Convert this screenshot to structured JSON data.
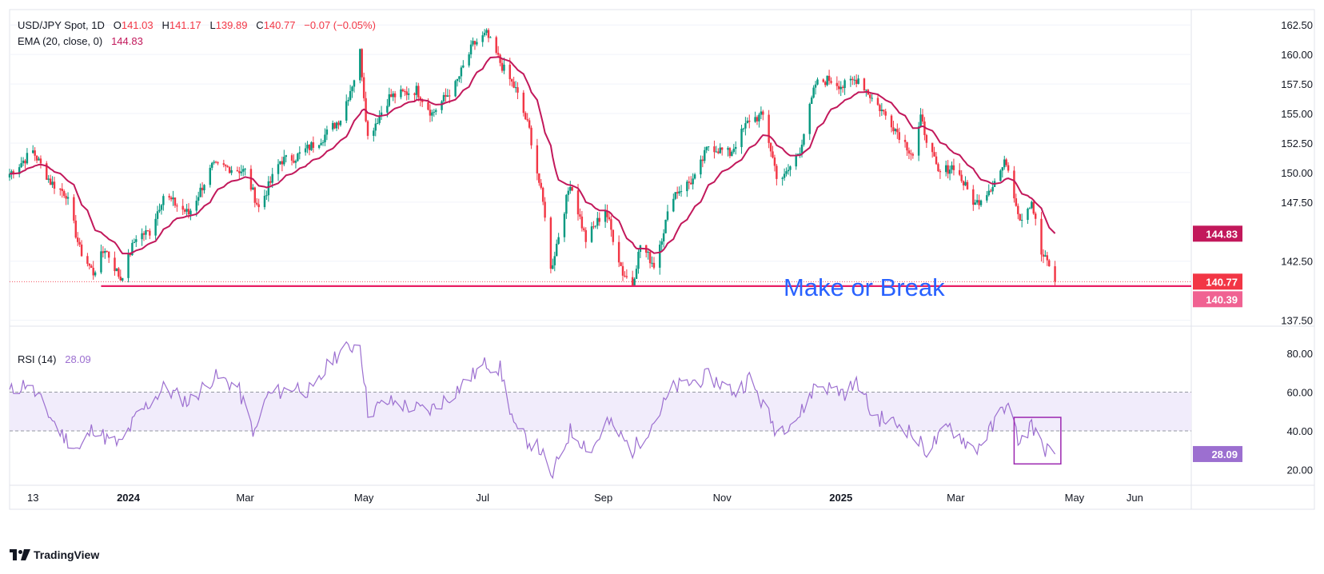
{
  "header": {
    "symbol": "USD/JPY Spot, 1D",
    "o_label": "O",
    "o_value": "141.03",
    "h_label": "H",
    "h_value": "141.17",
    "l_label": "L",
    "l_value": "139.89",
    "c_label": "C",
    "c_value": "140.77",
    "change": "−0.07 (−0.05%)",
    "ema_label": "EMA (20, close, 0)",
    "ema_value": "144.83",
    "rsi_label": "RSI (14)",
    "rsi_value": "28.09"
  },
  "annotation": {
    "text": "Make or Break"
  },
  "branding": {
    "text": "TradingView"
  },
  "colors": {
    "up": "#089981",
    "down": "#f23645",
    "ema": "#c2185b",
    "rsi": "#9c6fd0",
    "rsi_band": "#f1ecfb",
    "support": "#e91e63",
    "annotation": "#2962ff"
  },
  "chart_data": [
    {
      "type": "candlestick",
      "title": "USD/JPY Spot, 1D",
      "ylim": [
        137.0,
        163.8
      ],
      "y_ticks": [
        "162.50",
        "160.00",
        "157.50",
        "155.00",
        "152.50",
        "150.00",
        "147.50",
        "142.50",
        "137.50"
      ],
      "x_ticks": [
        "13",
        "2024",
        "Mar",
        "May",
        "Jul",
        "Sep",
        "Nov",
        "2025",
        "Mar",
        "May",
        "Jun"
      ],
      "price_labels": [
        {
          "label": "EMA 20",
          "value": "144.83",
          "y": 144.83
        },
        {
          "label": "Close",
          "value": "140.77",
          "y": 140.77
        },
        {
          "label": "Support",
          "value": "140.39",
          "y": 140.39
        }
      ],
      "support_level": 140.39,
      "support_start": "2023-12-18",
      "support_end": "2025-04-21",
      "close_path_keypoints": [
        [
          "2023-11-01",
          149.9
        ],
        [
          "2023-11-13",
          151.8
        ],
        [
          "2023-11-22",
          149.2
        ],
        [
          "2023-11-30",
          148.2
        ],
        [
          "2023-12-07",
          143.5
        ],
        [
          "2023-12-14",
          141.5
        ],
        [
          "2023-12-20",
          143.6
        ],
        [
          "2023-12-28",
          141.0
        ],
        [
          "2024-01-05",
          144.6
        ],
        [
          "2024-01-12",
          145.0
        ],
        [
          "2024-01-19",
          148.1
        ],
        [
          "2024-02-01",
          146.5
        ],
        [
          "2024-02-13",
          150.5
        ],
        [
          "2024-02-22",
          150.4
        ],
        [
          "2024-03-01",
          150.1
        ],
        [
          "2024-03-08",
          147.0
        ],
        [
          "2024-03-19",
          151.0
        ],
        [
          "2024-03-27",
          151.3
        ],
        [
          "2024-04-10",
          153.0
        ],
        [
          "2024-04-19",
          154.6
        ],
        [
          "2024-04-26",
          158.0
        ],
        [
          "2024-04-29",
          160.2
        ],
        [
          "2024-05-03",
          153.0
        ],
        [
          "2024-05-14",
          156.4
        ],
        [
          "2024-05-28",
          157.0
        ],
        [
          "2024-06-05",
          155.0
        ],
        [
          "2024-06-17",
          157.4
        ],
        [
          "2024-06-26",
          160.8
        ],
        [
          "2024-07-03",
          161.7
        ],
        [
          "2024-07-11",
          159.0
        ],
        [
          "2024-07-18",
          157.0
        ],
        [
          "2024-07-25",
          153.6
        ],
        [
          "2024-08-02",
          146.5
        ],
        [
          "2024-08-05",
          141.7
        ],
        [
          "2024-08-15",
          149.2
        ],
        [
          "2024-08-23",
          144.3
        ],
        [
          "2024-09-02",
          146.9
        ],
        [
          "2024-09-11",
          141.5
        ],
        [
          "2024-09-16",
          140.6
        ],
        [
          "2024-09-20",
          143.9
        ],
        [
          "2024-09-27",
          142.2
        ],
        [
          "2024-10-07",
          148.2
        ],
        [
          "2024-10-18",
          149.5
        ],
        [
          "2024-10-25",
          152.3
        ],
        [
          "2024-11-05",
          151.6
        ],
        [
          "2024-11-15",
          154.5
        ],
        [
          "2024-11-22",
          154.8
        ],
        [
          "2024-11-29",
          149.8
        ],
        [
          "2024-12-03",
          149.6
        ],
        [
          "2024-12-11",
          152.0
        ],
        [
          "2024-12-19",
          157.5
        ],
        [
          "2024-12-26",
          157.9
        ],
        [
          "2025-01-02",
          157.3
        ],
        [
          "2025-01-10",
          158.0
        ],
        [
          "2025-01-17",
          156.3
        ],
        [
          "2025-01-27",
          154.2
        ],
        [
          "2025-02-07",
          151.5
        ],
        [
          "2025-02-11",
          154.5
        ],
        [
          "2025-02-20",
          149.9
        ],
        [
          "2025-02-28",
          150.6
        ],
        [
          "2025-03-11",
          147.3
        ],
        [
          "2025-03-20",
          149.0
        ],
        [
          "2025-03-27",
          151.0
        ],
        [
          "2025-04-03",
          146.1
        ],
        [
          "2025-04-09",
          147.6
        ],
        [
          "2025-04-14",
          143.1
        ],
        [
          "2025-04-18",
          142.2
        ],
        [
          "2025-04-21",
          140.77
        ]
      ],
      "series": [
        {
          "name": "EMA (20, close, 0)",
          "last": 144.83
        }
      ]
    },
    {
      "type": "line",
      "title": "RSI (14)",
      "ylim": [
        12,
        94
      ],
      "y_ticks": [
        "80.00",
        "60.00",
        "40.00",
        "20.00"
      ],
      "bands": {
        "upper": 60,
        "lower": 40
      },
      "highlight_box": {
        "x_start": "2025-03-31",
        "x_end": "2025-04-24",
        "y_low": 23,
        "y_high": 47
      },
      "keypoints": [
        [
          "2023-11-01",
          60
        ],
        [
          "2023-11-10",
          65
        ],
        [
          "2023-11-17",
          55
        ],
        [
          "2023-11-28",
          38
        ],
        [
          "2023-12-07",
          30
        ],
        [
          "2023-12-14",
          42
        ],
        [
          "2023-12-22",
          35
        ],
        [
          "2023-12-28",
          33
        ],
        [
          "2024-01-05",
          47
        ],
        [
          "2024-01-19",
          62
        ],
        [
          "2024-02-01",
          55
        ],
        [
          "2024-02-14",
          68
        ],
        [
          "2024-02-26",
          63
        ],
        [
          "2024-03-06",
          38
        ],
        [
          "2024-03-12",
          58
        ],
        [
          "2024-03-27",
          63
        ],
        [
          "2024-04-05",
          60
        ],
        [
          "2024-04-15",
          78
        ],
        [
          "2024-04-29",
          86
        ],
        [
          "2024-05-03",
          50
        ],
        [
          "2024-05-14",
          55
        ],
        [
          "2024-06-03",
          50
        ],
        [
          "2024-06-14",
          58
        ],
        [
          "2024-07-03",
          75
        ],
        [
          "2024-07-10",
          72
        ],
        [
          "2024-07-18",
          40
        ],
        [
          "2024-07-31",
          30
        ],
        [
          "2024-08-05",
          15
        ],
        [
          "2024-08-15",
          40
        ],
        [
          "2024-08-26",
          30
        ],
        [
          "2024-09-03",
          45
        ],
        [
          "2024-09-16",
          30
        ],
        [
          "2024-09-27",
          45
        ],
        [
          "2024-10-07",
          62
        ],
        [
          "2024-10-25",
          68
        ],
        [
          "2024-11-08",
          60
        ],
        [
          "2024-11-15",
          67
        ],
        [
          "2024-11-29",
          40
        ],
        [
          "2024-12-11",
          48
        ],
        [
          "2024-12-19",
          64
        ],
        [
          "2025-01-03",
          60
        ],
        [
          "2025-01-10",
          65
        ],
        [
          "2025-01-17",
          48
        ],
        [
          "2025-02-03",
          42
        ],
        [
          "2025-02-14",
          30
        ],
        [
          "2025-02-26",
          42
        ],
        [
          "2025-03-11",
          30
        ],
        [
          "2025-03-20",
          42
        ],
        [
          "2025-03-27",
          55
        ],
        [
          "2025-04-03",
          33
        ],
        [
          "2025-04-09",
          44
        ],
        [
          "2025-04-14",
          32
        ],
        [
          "2025-04-18",
          30
        ],
        [
          "2025-04-21",
          28.09
        ]
      ]
    }
  ]
}
